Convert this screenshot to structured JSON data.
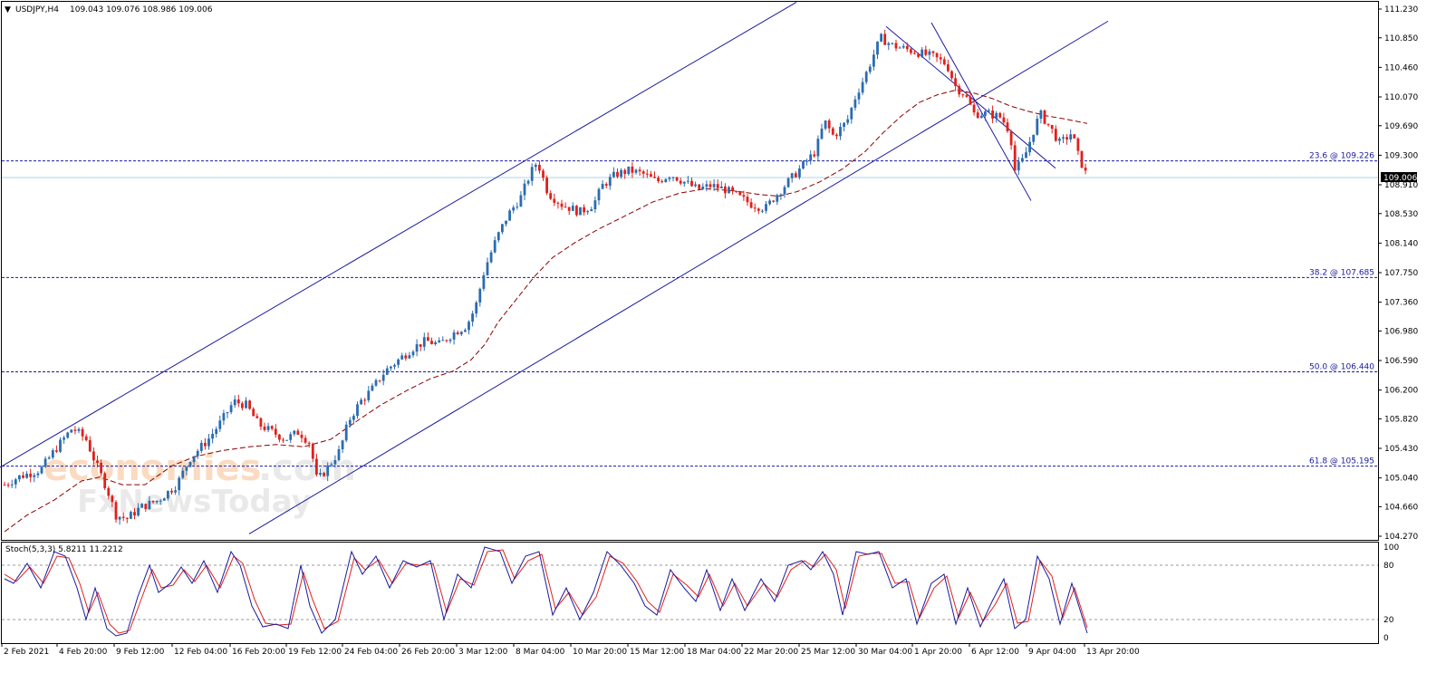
{
  "chart_data": {
    "type": "candlestick",
    "header": {
      "symbol": "USDJPY,H4",
      "ohlc": "109.043 109.076 108.986 109.006"
    },
    "current_price_label": "109.006",
    "y_ticks": [
      "111.230",
      "110.850",
      "110.460",
      "110.070",
      "109.690",
      "109.300",
      "108.910",
      "108.530",
      "108.140",
      "107.750",
      "107.360",
      "106.980",
      "106.590",
      "106.200",
      "105.820",
      "105.430",
      "105.040",
      "104.660",
      "104.270"
    ],
    "x_ticks": [
      "2 Feb 2021",
      "4 Feb 20:00",
      "9 Feb 12:00",
      "12 Feb 04:00",
      "16 Feb 20:00",
      "19 Feb 12:00",
      "24 Feb 04:00",
      "26 Feb 20:00",
      "3 Mar 12:00",
      "8 Mar 04:00",
      "10 Mar 20:00",
      "15 Mar 12:00",
      "18 Mar 04:00",
      "22 Mar 20:00",
      "25 Mar 12:00",
      "30 Mar 04:00",
      "1 Apr 20:00",
      "6 Apr 12:00",
      "9 Apr 04:00",
      "13 Apr 20:00"
    ],
    "fib_levels": [
      {
        "label": "23.6 @ 109.226",
        "price": 109.226
      },
      {
        "label": "38.2 @ 107.685",
        "price": 107.685
      },
      {
        "label": "50.0 @ 106.440",
        "price": 106.44
      },
      {
        "label": "61.8 @ 105.195",
        "price": 105.195
      }
    ],
    "current_price": 109.006,
    "y_range": [
      104.27,
      111.23
    ],
    "trend_lines": [
      {
        "name": "channel-upper",
        "points": [
          [
            0,
            105.18
          ],
          [
            879,
            111.32
          ]
        ]
      },
      {
        "name": "channel-lower",
        "points": [
          [
            275,
            104.3
          ],
          [
            1223,
            111.07
          ]
        ]
      },
      {
        "name": "down-channel-upper",
        "points": [
          [
            978,
            111.0
          ],
          [
            1165,
            109.13
          ]
        ]
      },
      {
        "name": "down-channel-lower",
        "points": [
          [
            1028,
            111.05
          ],
          [
            1138,
            108.7
          ]
        ]
      }
    ],
    "price_path": [
      [
        5,
        104.95
      ],
      [
        20,
        105.05
      ],
      [
        45,
        105.15
      ],
      [
        60,
        105.4
      ],
      [
        80,
        105.7
      ],
      [
        95,
        105.55
      ],
      [
        105,
        105.25
      ],
      [
        118,
        104.9
      ],
      [
        128,
        104.55
      ],
      [
        140,
        104.5
      ],
      [
        155,
        104.65
      ],
      [
        175,
        104.75
      ],
      [
        195,
        104.95
      ],
      [
        210,
        105.3
      ],
      [
        230,
        105.55
      ],
      [
        245,
        105.8
      ],
      [
        258,
        106.05
      ],
      [
        272,
        106.0
      ],
      [
        285,
        105.75
      ],
      [
        300,
        105.65
      ],
      [
        315,
        105.55
      ],
      [
        330,
        105.65
      ],
      [
        342,
        105.5
      ],
      [
        350,
        105.0
      ],
      [
        360,
        105.15
      ],
      [
        375,
        105.4
      ],
      [
        385,
        105.8
      ],
      [
        398,
        106.05
      ],
      [
        410,
        106.2
      ],
      [
        425,
        106.45
      ],
      [
        440,
        106.6
      ],
      [
        455,
        106.75
      ],
      [
        470,
        106.85
      ],
      [
        485,
        106.8
      ],
      [
        500,
        106.95
      ],
      [
        515,
        107.05
      ],
      [
        525,
        107.3
      ],
      [
        535,
        107.8
      ],
      [
        548,
        108.2
      ],
      [
        560,
        108.5
      ],
      [
        575,
        108.75
      ],
      [
        585,
        109.05
      ],
      [
        593,
        109.22
      ],
      [
        605,
        108.8
      ],
      [
        620,
        108.65
      ],
      [
        640,
        108.55
      ],
      [
        655,
        108.65
      ],
      [
        665,
        108.9
      ],
      [
        680,
        109.05
      ],
      [
        695,
        109.1
      ],
      [
        710,
        109.05
      ],
      [
        725,
        108.95
      ],
      [
        740,
        109.05
      ],
      [
        755,
        108.95
      ],
      [
        770,
        108.85
      ],
      [
        785,
        108.9
      ],
      [
        800,
        108.85
      ],
      [
        815,
        108.75
      ],
      [
        830,
        108.65
      ],
      [
        845,
        108.6
      ],
      [
        855,
        108.75
      ],
      [
        870,
        108.95
      ],
      [
        885,
        109.15
      ],
      [
        900,
        109.35
      ],
      [
        910,
        109.75
      ],
      [
        920,
        109.55
      ],
      [
        935,
        109.75
      ],
      [
        945,
        110.1
      ],
      [
        955,
        110.35
      ],
      [
        965,
        110.65
      ],
      [
        972,
        110.85
      ],
      [
        985,
        110.75
      ],
      [
        1000,
        110.7
      ],
      [
        1015,
        110.65
      ],
      [
        1030,
        110.6
      ],
      [
        1045,
        110.5
      ],
      [
        1055,
        110.2
      ],
      [
        1065,
        110.1
      ],
      [
        1075,
        109.85
      ],
      [
        1090,
        109.85
      ],
      [
        1105,
        109.8
      ],
      [
        1115,
        109.6
      ],
      [
        1120,
        109.1
      ],
      [
        1130,
        109.25
      ],
      [
        1140,
        109.6
      ],
      [
        1148,
        109.85
      ],
      [
        1160,
        109.65
      ],
      [
        1170,
        109.45
      ],
      [
        1183,
        109.6
      ],
      [
        1190,
        109.3
      ],
      [
        1200,
        109.01
      ]
    ],
    "ma": [
      [
        5,
        104.33
      ],
      [
        30,
        104.55
      ],
      [
        60,
        104.75
      ],
      [
        90,
        105.0
      ],
      [
        110,
        105.05
      ],
      [
        135,
        104.95
      ],
      [
        160,
        104.95
      ],
      [
        190,
        105.2
      ],
      [
        215,
        105.32
      ],
      [
        245,
        105.4
      ],
      [
        275,
        105.45
      ],
      [
        305,
        105.48
      ],
      [
        335,
        105.45
      ],
      [
        365,
        105.55
      ],
      [
        395,
        105.8
      ],
      [
        420,
        106.0
      ],
      [
        450,
        106.2
      ],
      [
        475,
        106.35
      ],
      [
        500,
        106.45
      ],
      [
        520,
        106.6
      ],
      [
        535,
        106.8
      ],
      [
        550,
        107.1
      ],
      [
        570,
        107.4
      ],
      [
        590,
        107.7
      ],
      [
        610,
        107.95
      ],
      [
        635,
        108.15
      ],
      [
        660,
        108.32
      ],
      [
        690,
        108.5
      ],
      [
        720,
        108.68
      ],
      [
        750,
        108.8
      ],
      [
        780,
        108.86
      ],
      [
        810,
        108.83
      ],
      [
        840,
        108.78
      ],
      [
        860,
        108.76
      ],
      [
        880,
        108.82
      ],
      [
        905,
        108.95
      ],
      [
        930,
        109.12
      ],
      [
        955,
        109.35
      ],
      [
        975,
        109.6
      ],
      [
        995,
        109.82
      ],
      [
        1015,
        110.0
      ],
      [
        1035,
        110.1
      ],
      [
        1055,
        110.16
      ],
      [
        1075,
        110.12
      ],
      [
        1095,
        110.05
      ],
      [
        1115,
        109.95
      ],
      [
        1135,
        109.88
      ],
      [
        1155,
        109.82
      ],
      [
        1175,
        109.78
      ],
      [
        1200,
        109.72
      ]
    ],
    "oscillator": {
      "label": "Stoch(5,3,3) 5.8211 11.2212",
      "levels": [
        "100",
        "80",
        "20",
        "0"
      ],
      "range": [
        0,
        100
      ],
      "main": [
        [
          5,
          65
        ],
        [
          15,
          60
        ],
        [
          30,
          82
        ],
        [
          45,
          55
        ],
        [
          60,
          95
        ],
        [
          72,
          90
        ],
        [
          85,
          55
        ],
        [
          95,
          20
        ],
        [
          105,
          55
        ],
        [
          118,
          10
        ],
        [
          128,
          2
        ],
        [
          140,
          5
        ],
        [
          152,
          45
        ],
        [
          165,
          80
        ],
        [
          175,
          50
        ],
        [
          188,
          60
        ],
        [
          200,
          78
        ],
        [
          212,
          60
        ],
        [
          225,
          85
        ],
        [
          240,
          50
        ],
        [
          255,
          95
        ],
        [
          265,
          80
        ],
        [
          278,
          35
        ],
        [
          290,
          12
        ],
        [
          305,
          15
        ],
        [
          318,
          10
        ],
        [
          332,
          80
        ],
        [
          342,
          35
        ],
        [
          355,
          5
        ],
        [
          370,
          20
        ],
        [
          388,
          95
        ],
        [
          400,
          70
        ],
        [
          415,
          90
        ],
        [
          430,
          55
        ],
        [
          445,
          85
        ],
        [
          460,
          78
        ],
        [
          475,
          85
        ],
        [
          490,
          20
        ],
        [
          505,
          70
        ],
        [
          520,
          55
        ],
        [
          535,
          100
        ],
        [
          552,
          95
        ],
        [
          565,
          60
        ],
        [
          580,
          90
        ],
        [
          595,
          95
        ],
        [
          610,
          25
        ],
        [
          625,
          55
        ],
        [
          640,
          20
        ],
        [
          655,
          50
        ],
        [
          670,
          95
        ],
        [
          685,
          80
        ],
        [
          700,
          60
        ],
        [
          712,
          35
        ],
        [
          725,
          25
        ],
        [
          740,
          75
        ],
        [
          755,
          55
        ],
        [
          768,
          40
        ],
        [
          780,
          75
        ],
        [
          795,
          30
        ],
        [
          808,
          65
        ],
        [
          822,
          30
        ],
        [
          840,
          65
        ],
        [
          855,
          40
        ],
        [
          870,
          80
        ],
        [
          885,
          85
        ],
        [
          895,
          75
        ],
        [
          908,
          95
        ],
        [
          920,
          70
        ],
        [
          930,
          25
        ],
        [
          945,
          95
        ],
        [
          958,
          92
        ],
        [
          970,
          95
        ],
        [
          985,
          55
        ],
        [
          1000,
          65
        ],
        [
          1012,
          15
        ],
        [
          1028,
          60
        ],
        [
          1042,
          70
        ],
        [
          1055,
          15
        ],
        [
          1068,
          55
        ],
        [
          1082,
          12
        ],
        [
          1095,
          40
        ],
        [
          1108,
          65
        ],
        [
          1120,
          10
        ],
        [
          1132,
          20
        ],
        [
          1145,
          90
        ],
        [
          1158,
          65
        ],
        [
          1170,
          15
        ],
        [
          1183,
          60
        ],
        [
          1200,
          5
        ]
      ],
      "signal": [
        [
          5,
          70
        ],
        [
          18,
          62
        ],
        [
          33,
          78
        ],
        [
          48,
          60
        ],
        [
          63,
          90
        ],
        [
          76,
          88
        ],
        [
          88,
          60
        ],
        [
          98,
          28
        ],
        [
          108,
          50
        ],
        [
          121,
          15
        ],
        [
          131,
          5
        ],
        [
          143,
          8
        ],
        [
          155,
          40
        ],
        [
          168,
          75
        ],
        [
          178,
          55
        ],
        [
          191,
          58
        ],
        [
          203,
          75
        ],
        [
          215,
          62
        ],
        [
          228,
          80
        ],
        [
          243,
          55
        ],
        [
          258,
          90
        ],
        [
          268,
          82
        ],
        [
          281,
          42
        ],
        [
          293,
          16
        ],
        [
          308,
          14
        ],
        [
          321,
          15
        ],
        [
          335,
          72
        ],
        [
          345,
          42
        ],
        [
          358,
          10
        ],
        [
          373,
          18
        ],
        [
          391,
          88
        ],
        [
          403,
          75
        ],
        [
          418,
          86
        ],
        [
          433,
          60
        ],
        [
          448,
          82
        ],
        [
          463,
          80
        ],
        [
          478,
          82
        ],
        [
          493,
          28
        ],
        [
          508,
          65
        ],
        [
          523,
          58
        ],
        [
          538,
          95
        ],
        [
          555,
          97
        ],
        [
          568,
          65
        ],
        [
          583,
          85
        ],
        [
          598,
          92
        ],
        [
          613,
          32
        ],
        [
          628,
          50
        ],
        [
          643,
          25
        ],
        [
          658,
          45
        ],
        [
          673,
          90
        ],
        [
          688,
          82
        ],
        [
          703,
          62
        ],
        [
          715,
          40
        ],
        [
          728,
          28
        ],
        [
          743,
          70
        ],
        [
          758,
          58
        ],
        [
          771,
          45
        ],
        [
          783,
          70
        ],
        [
          798,
          35
        ],
        [
          811,
          60
        ],
        [
          825,
          35
        ],
        [
          843,
          60
        ],
        [
          858,
          45
        ],
        [
          873,
          75
        ],
        [
          888,
          85
        ],
        [
          898,
          78
        ],
        [
          911,
          92
        ],
        [
          923,
          75
        ],
        [
          933,
          32
        ],
        [
          948,
          90
        ],
        [
          961,
          93
        ],
        [
          973,
          93
        ],
        [
          988,
          60
        ],
        [
          1003,
          62
        ],
        [
          1015,
          22
        ],
        [
          1031,
          55
        ],
        [
          1045,
          68
        ],
        [
          1058,
          22
        ],
        [
          1071,
          50
        ],
        [
          1085,
          18
        ],
        [
          1098,
          36
        ],
        [
          1111,
          60
        ],
        [
          1123,
          16
        ],
        [
          1135,
          18
        ],
        [
          1148,
          85
        ],
        [
          1161,
          68
        ],
        [
          1173,
          22
        ],
        [
          1186,
          55
        ],
        [
          1200,
          11
        ]
      ]
    }
  }
}
